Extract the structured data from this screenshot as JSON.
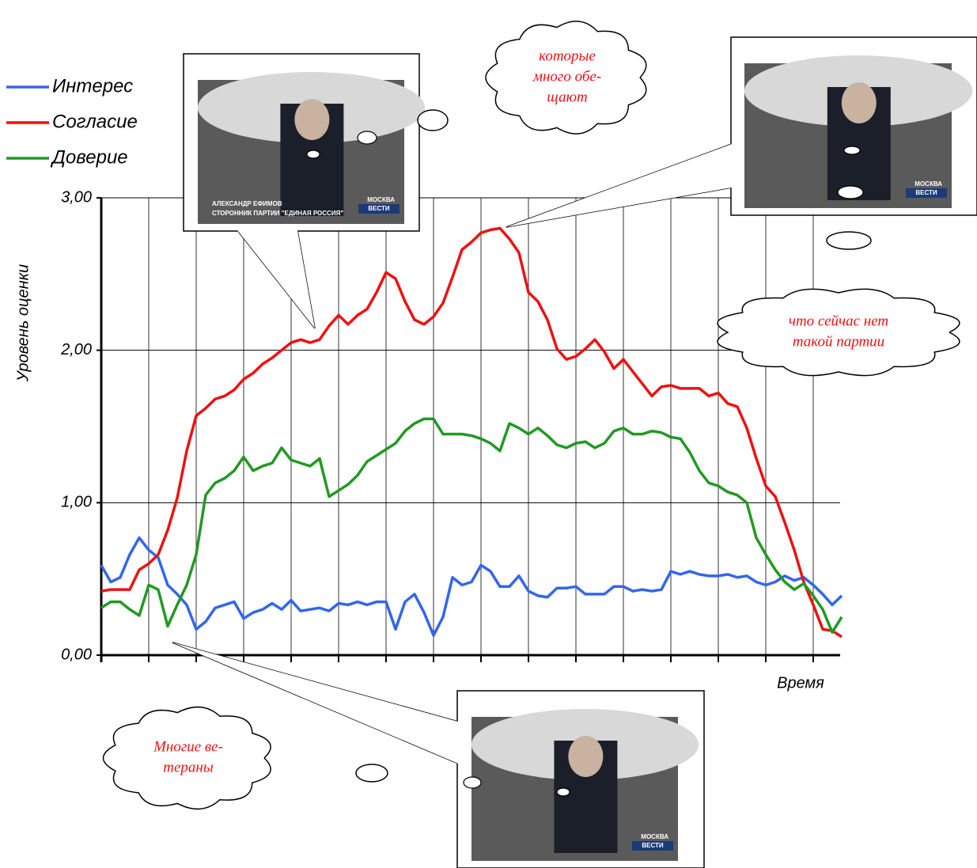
{
  "chart_data": {
    "type": "line",
    "y_label": "Уровень оценки",
    "x_label": "Время",
    "ylim": [
      0,
      3
    ],
    "yticks": [
      {
        "value": 0,
        "label": "0,00"
      },
      {
        "value": 1,
        "label": "1,00"
      },
      {
        "value": 2,
        "label": "2,00"
      },
      {
        "value": 3,
        "label": "3,00"
      }
    ],
    "grid": true,
    "categories": [
      null,
      null,
      null,
      null,
      null,
      null,
      null,
      null,
      null,
      null,
      null,
      null,
      null,
      null,
      null,
      null,
      null,
      null,
      null,
      null,
      null,
      null,
      null,
      null,
      null,
      null,
      null,
      null,
      null,
      null,
      null,
      null,
      null,
      null,
      null,
      null,
      null,
      null,
      null,
      null,
      null,
      null,
      null,
      null,
      null,
      null,
      null,
      null,
      null,
      null,
      null,
      null,
      null,
      null,
      null,
      null,
      null,
      null,
      null,
      null,
      null,
      null,
      null,
      null,
      null,
      null,
      null,
      null,
      null,
      null,
      null,
      null,
      null,
      null,
      null,
      null,
      null,
      null,
      null
    ],
    "series": [
      {
        "name": "Интерес",
        "color": "#3366ee",
        "values": [
          0.59,
          0.48,
          0.51,
          0.66,
          0.77,
          0.69,
          0.64,
          0.46,
          0.4,
          0.33,
          0.17,
          0.22,
          0.31,
          0.33,
          0.35,
          0.24,
          0.28,
          0.3,
          0.34,
          0.3,
          0.36,
          0.29,
          0.3,
          0.31,
          0.29,
          0.34,
          0.33,
          0.35,
          0.33,
          0.35,
          0.35,
          0.17,
          0.35,
          0.4,
          0.28,
          0.13,
          0.25,
          0.51,
          0.46,
          0.48,
          0.59,
          0.55,
          0.45,
          0.45,
          0.52,
          0.42,
          0.39,
          0.38,
          0.44,
          0.44,
          0.45,
          0.4,
          0.4,
          0.4,
          0.45,
          0.45,
          0.42,
          0.43,
          0.42,
          0.43,
          0.55,
          0.53,
          0.55,
          0.53,
          0.52,
          0.52,
          0.53,
          0.51,
          0.52,
          0.48,
          0.46,
          0.48,
          0.52,
          0.49,
          0.51,
          0.46,
          0.4,
          0.33,
          0.39
        ]
      },
      {
        "name": "Согласие",
        "color": "#ee1111",
        "values": [
          0.42,
          0.43,
          0.43,
          0.43,
          0.56,
          0.6,
          0.66,
          0.82,
          1.03,
          1.34,
          1.57,
          1.62,
          1.68,
          1.7,
          1.74,
          1.81,
          1.85,
          1.91,
          1.95,
          2.0,
          2.05,
          2.07,
          2.05,
          2.07,
          2.16,
          2.23,
          2.17,
          2.23,
          2.27,
          2.38,
          2.51,
          2.47,
          2.32,
          2.2,
          2.17,
          2.22,
          2.31,
          2.48,
          2.66,
          2.71,
          2.77,
          2.79,
          2.8,
          2.73,
          2.64,
          2.38,
          2.32,
          2.2,
          2.01,
          1.94,
          1.96,
          2.01,
          2.07,
          1.99,
          1.88,
          1.94,
          1.86,
          1.78,
          1.7,
          1.76,
          1.77,
          1.75,
          1.75,
          1.75,
          1.7,
          1.72,
          1.65,
          1.63,
          1.49,
          1.29,
          1.11,
          1.04,
          0.87,
          0.69,
          0.48,
          0.33,
          0.17,
          0.16,
          0.12
        ]
      },
      {
        "name": "Доверие",
        "color": "#229922",
        "values": [
          0.31,
          0.35,
          0.35,
          0.3,
          0.26,
          0.46,
          0.43,
          0.19,
          0.33,
          0.46,
          0.66,
          1.05,
          1.13,
          1.16,
          1.21,
          1.3,
          1.21,
          1.24,
          1.26,
          1.36,
          1.28,
          1.26,
          1.24,
          1.29,
          1.04,
          1.08,
          1.12,
          1.18,
          1.27,
          1.31,
          1.35,
          1.39,
          1.47,
          1.52,
          1.55,
          1.55,
          1.45,
          1.45,
          1.45,
          1.44,
          1.42,
          1.39,
          1.34,
          1.52,
          1.49,
          1.45,
          1.49,
          1.44,
          1.38,
          1.36,
          1.39,
          1.4,
          1.36,
          1.39,
          1.47,
          1.49,
          1.45,
          1.45,
          1.47,
          1.46,
          1.43,
          1.42,
          1.33,
          1.21,
          1.13,
          1.11,
          1.07,
          1.05,
          1.0,
          0.77,
          0.66,
          0.56,
          0.48,
          0.43,
          0.47,
          0.39,
          0.3,
          0.15,
          0.25
        ]
      }
    ],
    "annotations": [
      {
        "lines": [
          "которые",
          "много обе-",
          "щают"
        ]
      },
      {
        "lines": [
          "что сейчас нет",
          "такой партии"
        ]
      },
      {
        "lines": [
          "Многие ве-",
          "тераны"
        ]
      }
    ],
    "photos": [
      {
        "caption": [
          "АЛЕКСАНДР ЕФИМОВ",
          "СТОРОННИК ПАРТИИ \"ЕДИНАЯ РОССИЯ\""
        ],
        "city": "МОСКВА",
        "channel": "ВЕСТИ"
      },
      {
        "city": "МОСКВА",
        "channel": "ВЕСТИ"
      },
      {
        "city": "МОСКВА",
        "channel": "ВЕСТИ"
      }
    ]
  }
}
